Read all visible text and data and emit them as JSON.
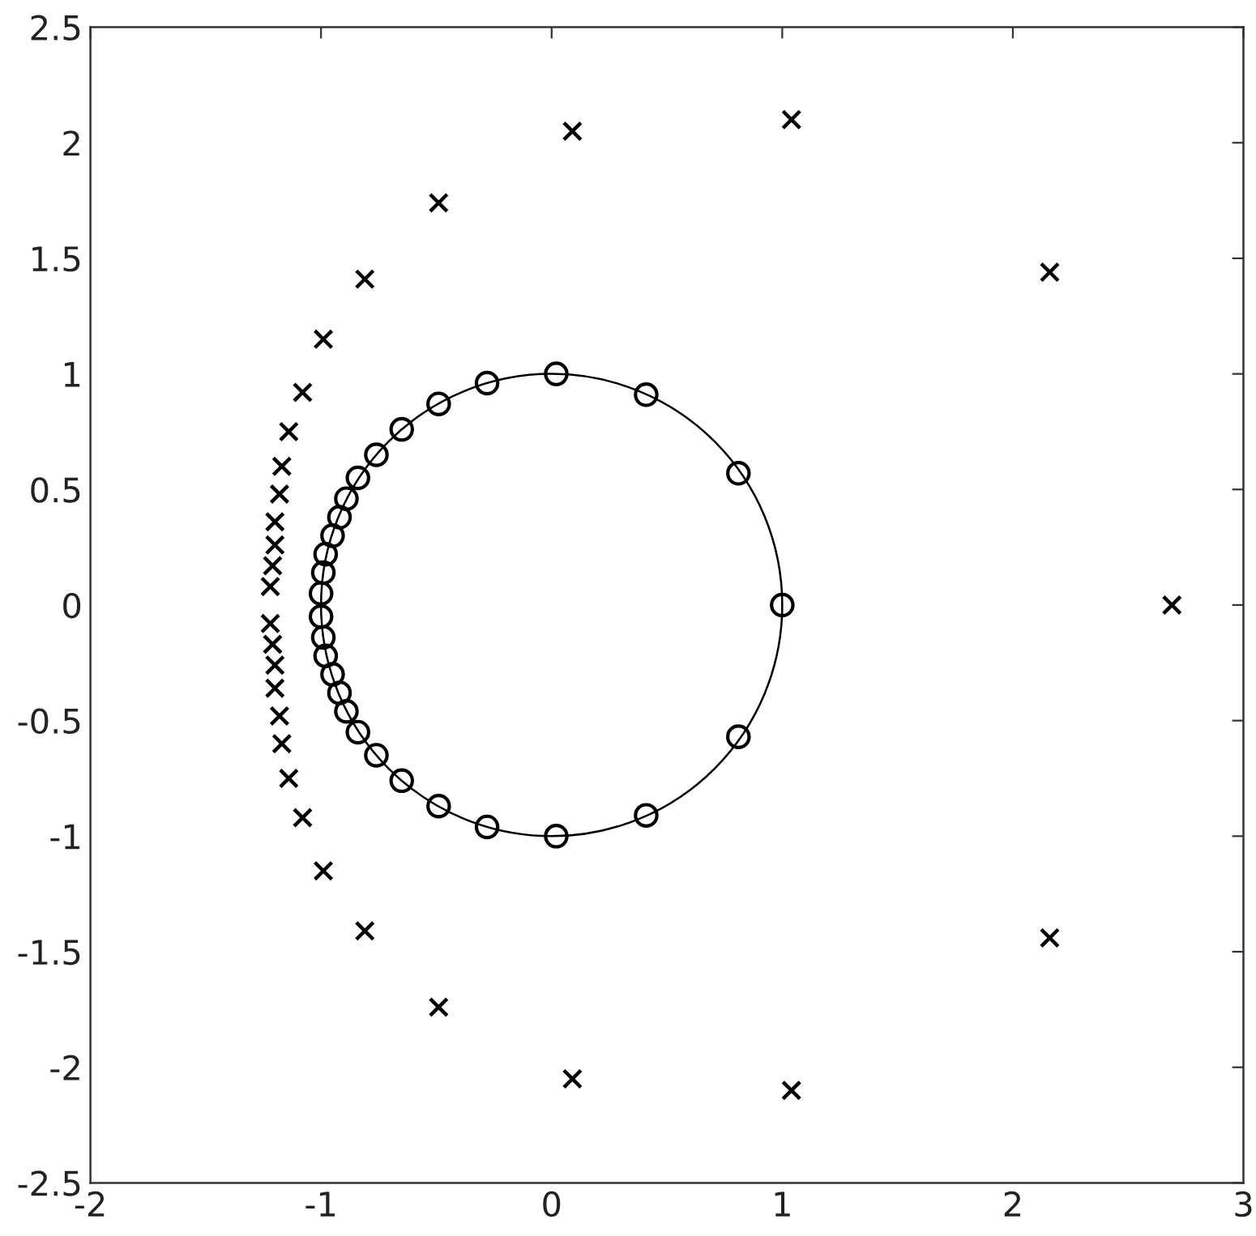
{
  "chart_data": {
    "type": "scatter",
    "xlim": [
      -2,
      3
    ],
    "ylim": [
      -2.5,
      2.5
    ],
    "xticks": [
      -2,
      -1,
      0,
      1,
      2,
      3
    ],
    "yticks": [
      -2.5,
      -2,
      -1.5,
      -1,
      -0.5,
      0,
      0.5,
      1,
      1.5,
      2,
      2.5
    ],
    "grid": false,
    "series": [
      {
        "color": "#000000",
        "marker": "circle",
        "x": [
          1,
          0.81,
          0.41,
          0.02,
          -0.28,
          -0.49,
          -0.65,
          -0.76,
          -0.84,
          -0.89,
          -0.92,
          -0.95,
          -0.98,
          -0.99,
          -1,
          -1,
          -0.99,
          -0.98,
          -0.95,
          -0.92,
          -0.89,
          -0.84,
          -0.76,
          -0.65,
          -0.49,
          -0.28,
          0.02,
          0.41,
          0.81
        ],
        "values": [
          0,
          0.57,
          0.91,
          1,
          0.96,
          0.87,
          0.76,
          0.65,
          0.55,
          0.46,
          0.38,
          0.3,
          0.22,
          0.14,
          0.05,
          -0.05,
          -0.14,
          -0.22,
          -0.3,
          -0.38,
          -0.46,
          -0.55,
          -0.65,
          -0.76,
          -0.87,
          -0.96,
          -1,
          -0.91,
          -0.57
        ]
      },
      {
        "color": "#000000",
        "marker": "cross",
        "x": [
          2.69,
          2.16,
          1.04,
          0.09,
          -0.49,
          -0.81,
          -0.99,
          -1.08,
          -1.14,
          -1.17,
          -1.18,
          -1.2,
          -1.2,
          -1.21,
          -1.22,
          -1.22,
          -1.21,
          -1.2,
          -1.2,
          -1.18,
          -1.17,
          -1.14,
          -1.08,
          -0.99,
          -0.81,
          -0.49,
          0.09,
          1.04,
          2.16
        ],
        "values": [
          0,
          1.44,
          2.1,
          2.05,
          1.74,
          1.41,
          1.15,
          0.92,
          0.75,
          0.6,
          0.48,
          0.36,
          0.26,
          0.17,
          0.08,
          -0.08,
          -0.17,
          -0.26,
          -0.36,
          -0.48,
          -0.6,
          -0.75,
          -0.92,
          -1.15,
          -1.41,
          -1.74,
          -2.05,
          -2.1,
          -1.44
        ]
      }
    ]
  }
}
